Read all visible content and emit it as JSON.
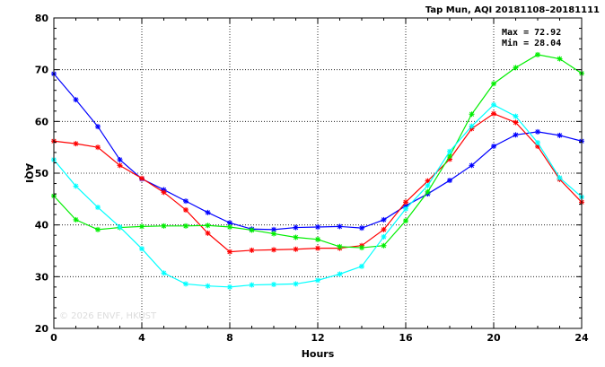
{
  "chart_data": {
    "type": "line",
    "title": "Tap Mun, AQI 20181108–20181111",
    "xlabel": "Hours",
    "ylabel": "AQI",
    "xlim": [
      0,
      24
    ],
    "ylim": [
      20,
      80
    ],
    "xticks": [
      0,
      4,
      8,
      12,
      16,
      20,
      24
    ],
    "yticks": [
      20,
      30,
      40,
      50,
      60,
      70,
      80
    ],
    "grid": true,
    "annotations": {
      "max": "Max = 72.92",
      "min": "Min = 28.04"
    },
    "watermark": "© 2026  ENVF, HKUST",
    "x": [
      0,
      1,
      2,
      3,
      4,
      5,
      6,
      7,
      8,
      9,
      10,
      11,
      12,
      13,
      14,
      15,
      16,
      17,
      18,
      19,
      20,
      21,
      22,
      23,
      24
    ],
    "series": [
      {
        "color": "#0000ff",
        "values": [
          69.2,
          64.2,
          59.0,
          52.6,
          48.9,
          46.8,
          44.6,
          42.4,
          40.4,
          39.2,
          39.1,
          39.5,
          39.6,
          39.7,
          39.4,
          41.0,
          43.7,
          46.0,
          48.6,
          51.5,
          55.2,
          57.4,
          58.0,
          57.3,
          56.2
        ]
      },
      {
        "color": "#ff0000",
        "values": [
          56.2,
          55.7,
          55.0,
          51.5,
          49.0,
          46.3,
          42.9,
          38.4,
          34.8,
          35.1,
          35.2,
          35.3,
          35.5,
          35.5,
          36.0,
          39.1,
          44.4,
          48.5,
          52.7,
          58.6,
          61.5,
          59.8,
          55.2,
          48.8,
          44.4
        ]
      },
      {
        "color": "#00ee00",
        "values": [
          45.6,
          41.0,
          39.1,
          39.5,
          39.7,
          39.8,
          39.8,
          39.9,
          39.6,
          39.0,
          38.3,
          37.6,
          37.2,
          35.8,
          35.6,
          36.0,
          40.8,
          46.4,
          53.3,
          61.4,
          67.3,
          70.4,
          72.9,
          72.1,
          69.3
        ]
      },
      {
        "color": "#00ffff",
        "values": [
          52.6,
          47.5,
          43.4,
          39.6,
          35.4,
          30.7,
          28.6,
          28.2,
          28.0,
          28.4,
          28.5,
          28.6,
          29.3,
          30.5,
          32.0,
          37.7,
          43.1,
          47.6,
          54.2,
          59.1,
          63.2,
          61.0,
          55.9,
          49.1,
          45.4
        ]
      }
    ]
  }
}
